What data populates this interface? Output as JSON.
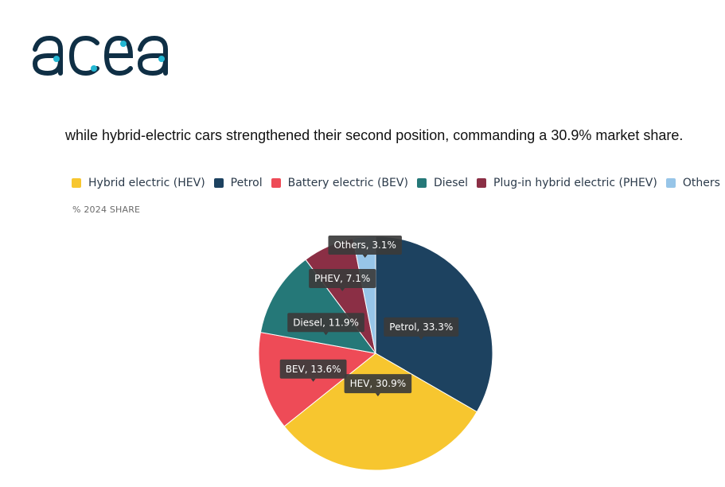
{
  "brand": {
    "logo_text": "acea",
    "colors": {
      "dark": "#0f2f45",
      "dot": "#23b7d3"
    }
  },
  "intro_text": "while hybrid-electric cars strengthened their second position, commanding a 30.9% market share.",
  "chart_data": {
    "type": "pie",
    "subtitle": "% 2024 SHARE",
    "start_category": "Petrol",
    "series": [
      {
        "name": "Petrol",
        "legend": "Petrol",
        "label": "Petrol, 33.3%",
        "value": 33.3,
        "color": "#1d4260"
      },
      {
        "name": "HEV",
        "legend": "Hybrid electric (HEV)",
        "label": "HEV, 30.9%",
        "value": 30.9,
        "color": "#f7c62f"
      },
      {
        "name": "BEV",
        "legend": "Battery electric (BEV)",
        "label": "BEV, 13.6%",
        "value": 13.6,
        "color": "#ee4b57"
      },
      {
        "name": "Diesel",
        "legend": "Diesel",
        "label": "Diesel, 11.9%",
        "value": 11.9,
        "color": "#257878"
      },
      {
        "name": "PHEV",
        "legend": "Plug-in hybrid electric (PHEV)",
        "label": "PHEV, 7.1%",
        "value": 7.1,
        "color": "#8b2f45"
      },
      {
        "name": "Others",
        "legend": "Others",
        "label": "Others, 3.1%",
        "value": 3.1,
        "color": "#97c5e8"
      }
    ],
    "legend_order": [
      "HEV",
      "Petrol",
      "BEV",
      "Diesel",
      "PHEV",
      "Others"
    ],
    "legend_position": "top"
  }
}
